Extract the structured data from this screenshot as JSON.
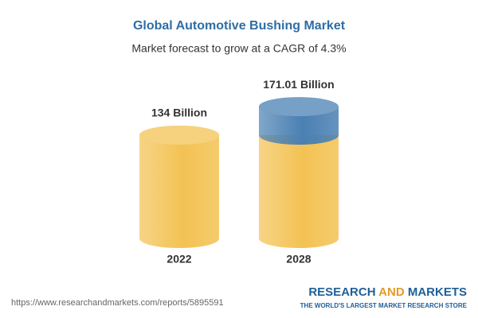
{
  "chart_data": {
    "type": "cylinder",
    "title": "Global Automotive Bushing Market",
    "subtitle": "Market forecast to grow at a CAGR of 4.3%",
    "categories": [
      "2022",
      "2028"
    ],
    "values": [
      134,
      171.01
    ],
    "value_labels": [
      "134 Billion",
      "171.01 Billion"
    ],
    "color": "#f3c253",
    "growth_color": "#4a80b3"
  },
  "footer": {
    "url": "https://www.researchandmarkets.com/reports/5895591",
    "brand": [
      "RESEARCH",
      "AND",
      "MARKETS"
    ],
    "tagline": "THE WORLD'S LARGEST MARKET RESEARCH STORE"
  }
}
